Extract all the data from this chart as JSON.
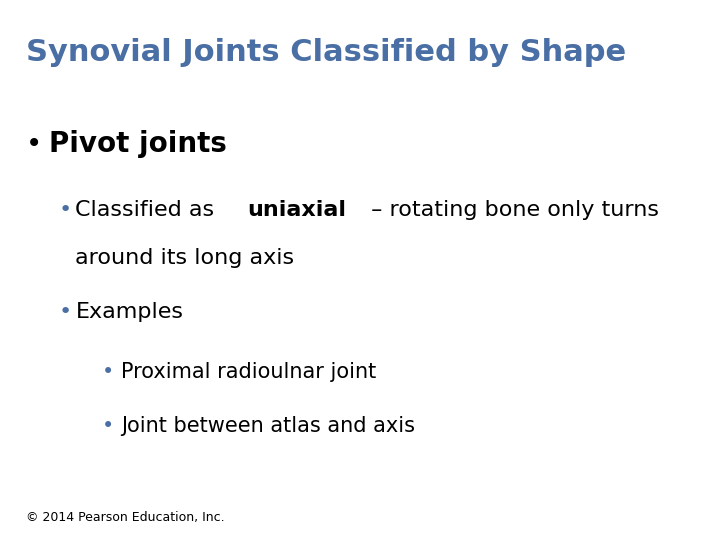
{
  "title": "Synovial Joints Classified by Shape",
  "title_color": "#4a6fa5",
  "title_fontsize": 22,
  "title_bold": true,
  "background_color": "#ffffff",
  "bullet1_text": "Pivot joints",
  "bullet1_bold": true,
  "bullet1_fontsize": 20,
  "bullet1_color": "#000000",
  "sub_bullet1_parts": [
    {
      "text": "Classified as ",
      "bold": false
    },
    {
      "text": "uniaxial",
      "bold": true
    },
    {
      "text": " – rotating bone only turns\naround its long axis",
      "bold": false
    }
  ],
  "sub_bullet1_fontsize": 16,
  "sub_bullet1_color": "#000000",
  "sub_bullet2_text": "Examples",
  "sub_bullet2_fontsize": 16,
  "sub_bullet2_color": "#000000",
  "sub_sub_bullet1_text": "Proximal radioulnar joint",
  "sub_sub_bullet2_text": "Joint between atlas and axis",
  "sub_sub_fontsize": 15,
  "sub_sub_color": "#000000",
  "bullet_color": "#4a6fa5",
  "sub_bullet_color": "#4a6fa5",
  "sub_sub_bullet_color": "#4a6fa5",
  "footer_text": "© 2014 Pearson Education, Inc.",
  "footer_fontsize": 9,
  "footer_color": "#000000"
}
